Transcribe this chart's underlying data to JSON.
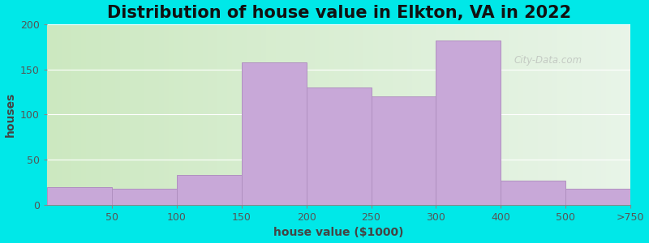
{
  "title": "Distribution of house value in Elkton, VA in 2022",
  "xlabel": "house value ($1000)",
  "ylabel": "houses",
  "tick_labels": [
    "50",
    "100",
    "150",
    "200",
    "250",
    "300",
    "400",
    "500",
    ">750"
  ],
  "bar_heights": [
    20,
    18,
    33,
    158,
    130,
    120,
    182,
    27,
    18
  ],
  "bar_color": "#c8a8d8",
  "bar_edgecolor": "#b090c0",
  "ylim": [
    0,
    200
  ],
  "yticks": [
    0,
    50,
    100,
    150,
    200
  ],
  "figure_facecolor": "#00e8e8",
  "axes_bg_left_color": "#cce8c0",
  "axes_bg_right_color": "#e8f4e8",
  "watermark_text": "City-Data.com",
  "title_fontsize": 15,
  "label_fontsize": 10,
  "tick_fontsize": 9,
  "tick_color": "#555555",
  "label_color": "#444444"
}
